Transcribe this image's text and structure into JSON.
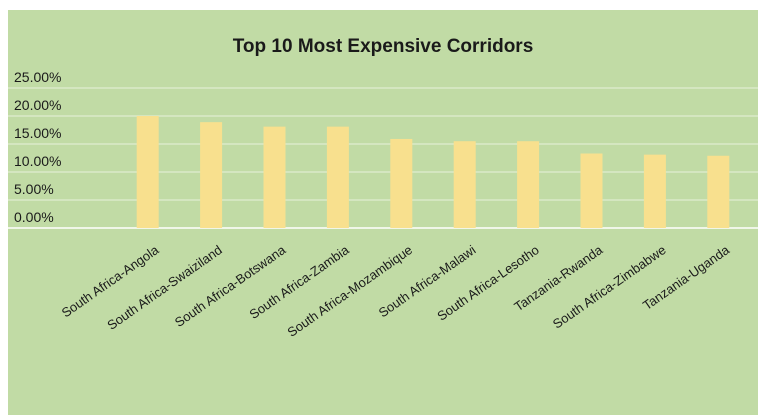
{
  "chart_data": {
    "type": "bar",
    "title": "Top 10 Most Expensive Corridors",
    "xlabel": "",
    "ylabel": "",
    "categories": [
      "South Africa-Angola",
      "South Africa-Swaiziland",
      "South Africa-Botswana",
      "South Africa-Zambia",
      "South Africa-Mozambique",
      "South Africa-Malawi",
      "South Africa-Lesotho",
      "Tanzania-Rwanda",
      "South Africa-Zimbabwe",
      "Tanzania-Uganda"
    ],
    "values": [
      0.2,
      0.189,
      0.181,
      0.181,
      0.159,
      0.155,
      0.155,
      0.133,
      0.131,
      0.129
    ],
    "ylim": [
      0,
      0.25
    ],
    "yticks": [
      "0.00%",
      "5.00%",
      "10.00%",
      "15.00%",
      "20.00%",
      "25.00%"
    ],
    "grid": true,
    "legend": "none",
    "colors": {
      "background": "#c1dba5",
      "bar": "#f8e08e",
      "gridline": "#e8f1dc",
      "text": "#1a1a1a"
    }
  }
}
